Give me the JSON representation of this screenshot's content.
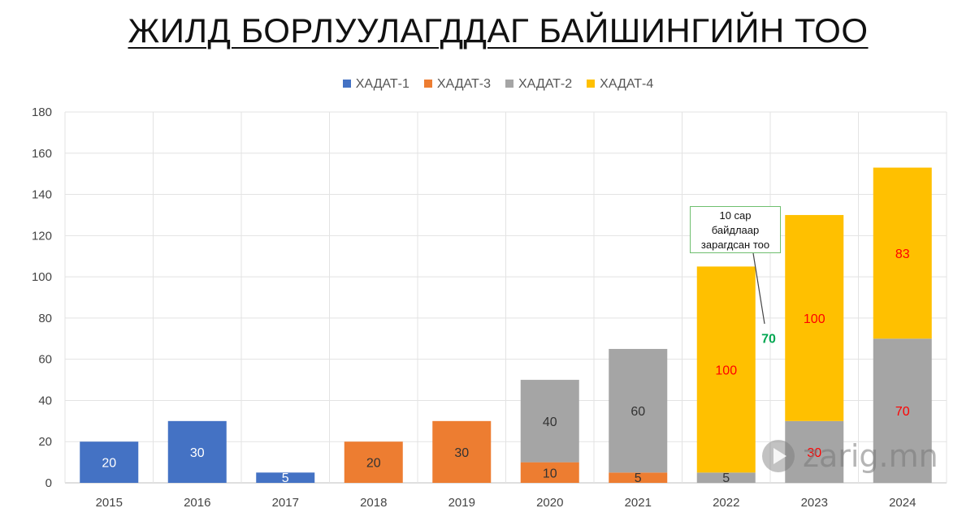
{
  "chart_data": {
    "type": "bar",
    "stacked": true,
    "title": "ЖИЛД БОРЛУУЛАГДДАГ БАЙШИНГИЙН ТОО",
    "categories": [
      "2015",
      "2016",
      "2017",
      "2018",
      "2019",
      "2020",
      "2021",
      "2022",
      "2023",
      "2024"
    ],
    "ylim": [
      0,
      180
    ],
    "yticks": [
      0,
      20,
      40,
      60,
      80,
      100,
      120,
      140,
      160,
      180
    ],
    "grid": true,
    "legend_position": "top",
    "legend_order": [
      "ХАДАТ-1",
      "ХАДАТ-3",
      "ХАДАТ-2",
      "ХАДАТ-4"
    ],
    "series": [
      {
        "name": "ХАДАТ-1",
        "color": "#4472c4",
        "label_color": "#ffffff",
        "values": [
          20,
          30,
          5,
          null,
          null,
          null,
          null,
          null,
          null,
          null
        ]
      },
      {
        "name": "ХАДАТ-3",
        "color": "#ed7d31",
        "label_color": "#333333",
        "values": [
          null,
          null,
          null,
          20,
          30,
          10,
          5,
          null,
          null,
          null
        ]
      },
      {
        "name": "ХАДАТ-2",
        "color": "#a5a5a5",
        "label_color": "#333333",
        "values": [
          null,
          null,
          null,
          null,
          null,
          40,
          60,
          5,
          30,
          70
        ],
        "label_colors": {
          "8": "#ff0000",
          "9": "#ff0000"
        }
      },
      {
        "name": "ХАДАТ-4",
        "color": "#ffc000",
        "label_color": "#ff0000",
        "values": [
          null,
          null,
          null,
          null,
          null,
          null,
          null,
          100,
          100,
          83
        ]
      }
    ],
    "annotations": [
      {
        "text_lines": [
          "10 сар",
          "байдлаар",
          "зарагдсан тоо"
        ],
        "category": "2022",
        "value": 70,
        "value_color": "#00a651"
      }
    ]
  },
  "watermark": {
    "text": "zarig.mn"
  }
}
